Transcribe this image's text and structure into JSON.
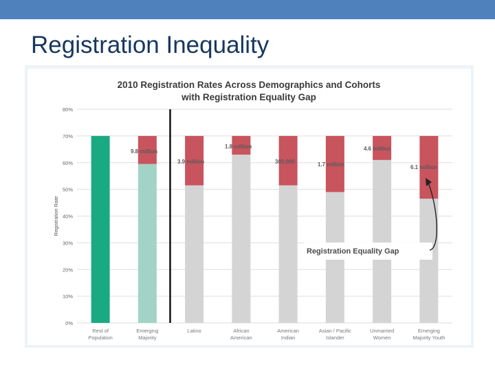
{
  "slide": {
    "title": "Registration Inequality"
  },
  "chart_data": {
    "type": "bar",
    "title_line1": "2010 Registration Rates Across Demographics and Cohorts",
    "title_line2": "with Registration Equality Gap",
    "ylabel": "Registration Rate",
    "xlabel": "",
    "ylim": [
      0,
      80
    ],
    "y_ticks": [
      "0%",
      "10%",
      "20%",
      "30%",
      "40%",
      "50%",
      "60%",
      "70%",
      "80%"
    ],
    "grid": true,
    "target_rate": 70,
    "categories": [
      {
        "label_lines": [
          "Rest of",
          "Population"
        ],
        "rate": 70,
        "gap": 0,
        "gap_label": "",
        "color": "#1aaa82"
      },
      {
        "label_lines": [
          "Emerging",
          "Majority"
        ],
        "rate": 59.5,
        "gap": 10.5,
        "gap_label": "9.8 million",
        "color": "#a3d3c6"
      },
      {
        "label_lines": [
          "Latino"
        ],
        "rate": 51.5,
        "gap": 18.5,
        "gap_label": "3.9 million",
        "color": "#d4d4d4"
      },
      {
        "label_lines": [
          "African",
          "American"
        ],
        "rate": 63,
        "gap": 7,
        "gap_label": "1.8 million",
        "color": "#d4d4d4"
      },
      {
        "label_lines": [
          "American",
          "Indian"
        ],
        "rate": 51.5,
        "gap": 18.5,
        "gap_label": "300,000",
        "color": "#d4d4d4"
      },
      {
        "label_lines": [
          "Asian / Pacific",
          "Islander"
        ],
        "rate": 49,
        "gap": 21,
        "gap_label": "1.7 million",
        "color": "#d4d4d4"
      },
      {
        "label_lines": [
          "Unmarried",
          "Women"
        ],
        "rate": 61,
        "gap": 9,
        "gap_label": "4.6 million",
        "color": "#d4d4d4"
      },
      {
        "label_lines": [
          "Emerging",
          "Majority Youth"
        ],
        "rate": 46.5,
        "gap": 23.5,
        "gap_label": "6.1 million",
        "color": "#d4d4d4"
      }
    ],
    "gap_color": "#c8545e",
    "annotation": "Registration Equality Gap"
  }
}
